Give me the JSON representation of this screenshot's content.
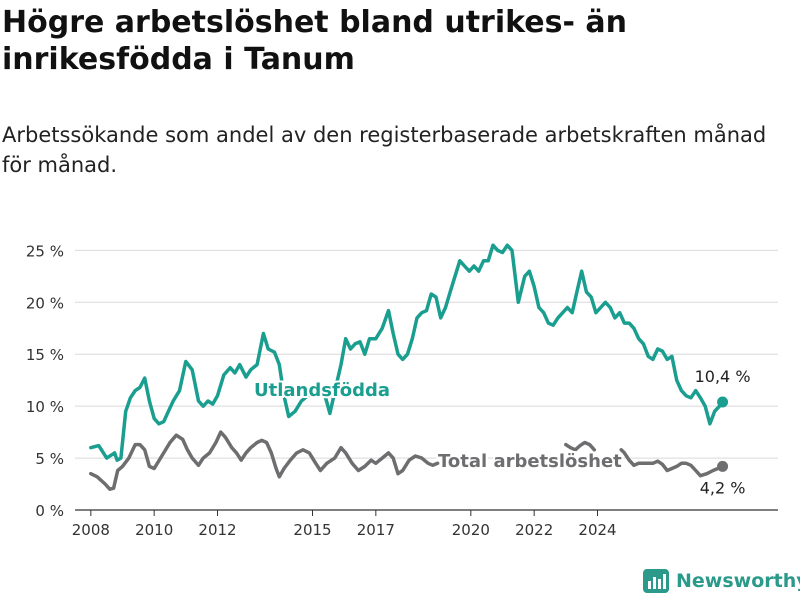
{
  "title": "Högre arbetslöshet bland utrikes- än inrikesfödda i Tanum",
  "subtitle": "Arbetssökande som andel av den registerbaserade arbetskraften månad för månad.",
  "brand": {
    "name": "Newsworthy",
    "icon": "bar-chart-logo-icon"
  },
  "colors": {
    "utlandsfodda": "#1a9e8f",
    "total": "#6e6e70",
    "grid": "#d9d9d9",
    "text": "#333333"
  },
  "chart_data": {
    "type": "line",
    "ylim": [
      0,
      26
    ],
    "yticks": [
      0,
      5,
      10,
      15,
      20,
      25
    ],
    "ytick_labels": [
      "0 %",
      "5 %",
      "10 %",
      "15 %",
      "20 %",
      "25 %"
    ],
    "xticks": [
      2008,
      2010,
      2012,
      2015,
      2017,
      2020,
      2022,
      2024
    ],
    "xtick_labels": [
      "2008",
      "2010",
      "2012",
      "2015",
      "2017",
      "2020",
      "2022",
      "2024"
    ],
    "grid": true,
    "legend": "inline",
    "series": [
      {
        "name": "Utlandsfödda",
        "end_label": "10,4 %",
        "points": [
          [
            2008.0,
            6.0
          ],
          [
            2008.25,
            6.2
          ],
          [
            2008.5,
            5.0
          ],
          [
            2008.75,
            5.5
          ],
          [
            2008.83,
            4.8
          ],
          [
            2008.95,
            5.0
          ],
          [
            2009.1,
            9.5
          ],
          [
            2009.25,
            10.8
          ],
          [
            2009.4,
            11.5
          ],
          [
            2009.55,
            11.8
          ],
          [
            2009.7,
            12.7
          ],
          [
            2009.85,
            10.5
          ],
          [
            2010.0,
            8.8
          ],
          [
            2010.15,
            8.3
          ],
          [
            2010.3,
            8.5
          ],
          [
            2010.45,
            9.5
          ],
          [
            2010.6,
            10.5
          ],
          [
            2010.8,
            11.5
          ],
          [
            2011.0,
            14.3
          ],
          [
            2011.2,
            13.5
          ],
          [
            2011.4,
            10.5
          ],
          [
            2011.55,
            10.0
          ],
          [
            2011.7,
            10.5
          ],
          [
            2011.85,
            10.2
          ],
          [
            2012.0,
            11.0
          ],
          [
            2012.2,
            13.0
          ],
          [
            2012.4,
            13.7
          ],
          [
            2012.55,
            13.2
          ],
          [
            2012.7,
            14.0
          ],
          [
            2012.9,
            12.8
          ],
          [
            2013.05,
            13.5
          ],
          [
            2013.25,
            14.0
          ],
          [
            2013.45,
            17.0
          ],
          [
            2013.6,
            15.5
          ],
          [
            2013.8,
            15.2
          ],
          [
            2013.95,
            14.0
          ],
          [
            2014.1,
            11.0
          ],
          [
            2014.25,
            9.0
          ],
          [
            2014.45,
            9.5
          ],
          [
            2014.65,
            10.5
          ],
          [
            2014.85,
            11.0
          ],
          [
            2015.05,
            11.2
          ],
          [
            2015.2,
            12.0
          ],
          [
            2015.35,
            11.5
          ],
          [
            2015.55,
            9.3
          ],
          [
            2015.75,
            12.0
          ],
          [
            2015.9,
            14.0
          ],
          [
            2016.05,
            16.5
          ],
          [
            2016.2,
            15.5
          ],
          [
            2016.35,
            16.0
          ],
          [
            2016.5,
            16.2
          ],
          [
            2016.65,
            15.0
          ],
          [
            2016.8,
            16.5
          ],
          [
            2017.0,
            16.5
          ],
          [
            2017.2,
            17.5
          ],
          [
            2017.4,
            19.2
          ],
          [
            2017.55,
            17.0
          ],
          [
            2017.7,
            15.0
          ],
          [
            2017.85,
            14.5
          ],
          [
            2018.0,
            15.0
          ],
          [
            2018.15,
            16.5
          ],
          [
            2018.3,
            18.5
          ],
          [
            2018.45,
            19.0
          ],
          [
            2018.6,
            19.2
          ],
          [
            2018.75,
            20.8
          ],
          [
            2018.9,
            20.5
          ],
          [
            2019.05,
            18.5
          ],
          [
            2019.2,
            19.5
          ],
          [
            2019.35,
            21.0
          ],
          [
            2019.5,
            22.5
          ],
          [
            2019.65,
            24.0
          ],
          [
            2019.8,
            23.5
          ],
          [
            2019.95,
            23.0
          ],
          [
            2020.1,
            23.5
          ],
          [
            2020.25,
            23.0
          ],
          [
            2020.4,
            24.0
          ],
          [
            2020.55,
            24.0
          ],
          [
            2020.7,
            25.5
          ],
          [
            2020.85,
            25.0
          ],
          [
            2021.0,
            24.8
          ],
          [
            2021.15,
            25.5
          ],
          [
            2021.3,
            25.0
          ],
          [
            2021.5,
            20.0
          ],
          [
            2021.7,
            22.5
          ],
          [
            2021.85,
            23.0
          ],
          [
            2022.0,
            21.5
          ],
          [
            2022.15,
            19.5
          ],
          [
            2022.3,
            19.0
          ],
          [
            2022.45,
            18.0
          ],
          [
            2022.6,
            17.8
          ],
          [
            2022.75,
            18.5
          ],
          [
            2022.9,
            19.0
          ],
          [
            2023.05,
            19.5
          ],
          [
            2023.2,
            19.0
          ],
          [
            2023.35,
            21.0
          ],
          [
            2023.5,
            23.0
          ],
          [
            2023.65,
            21.0
          ],
          [
            2023.8,
            20.5
          ],
          [
            2023.95,
            19.0
          ],
          [
            2024.1,
            19.5
          ],
          [
            2024.25,
            20.0
          ],
          [
            2024.4,
            19.5
          ],
          [
            2024.55,
            18.5
          ],
          [
            2024.7,
            19.0
          ],
          [
            2024.85,
            18.0
          ],
          [
            2025.0,
            18.0
          ],
          [
            2025.15,
            17.5
          ],
          [
            2025.3,
            16.5
          ],
          [
            2025.45,
            16.0
          ],
          [
            2025.6,
            14.8
          ],
          [
            2025.75,
            14.5
          ],
          [
            2025.9,
            15.5
          ],
          [
            2026.05,
            15.3
          ],
          [
            2026.2,
            14.5
          ],
          [
            2026.35,
            14.8
          ],
          [
            2026.5,
            12.5
          ],
          [
            2026.65,
            11.5
          ],
          [
            2026.8,
            11.0
          ],
          [
            2026.95,
            10.8
          ],
          [
            2027.1,
            11.5
          ],
          [
            2027.25,
            10.8
          ],
          [
            2027.4,
            10.0
          ],
          [
            2027.55,
            8.3
          ],
          [
            2027.7,
            9.5
          ],
          [
            2027.85,
            10.0
          ],
          [
            2027.95,
            10.4
          ]
        ]
      },
      {
        "name": "Total arbetslöshet",
        "end_label": "4,2 %",
        "points": [
          [
            2008.0,
            3.5
          ],
          [
            2008.2,
            3.2
          ],
          [
            2008.45,
            2.5
          ],
          [
            2008.6,
            2.0
          ],
          [
            2008.72,
            2.1
          ],
          [
            2008.85,
            3.8
          ],
          [
            2009.0,
            4.2
          ],
          [
            2009.2,
            5.0
          ],
          [
            2009.4,
            6.3
          ],
          [
            2009.55,
            6.3
          ],
          [
            2009.7,
            5.8
          ],
          [
            2009.85,
            4.2
          ],
          [
            2010.0,
            4.0
          ],
          [
            2010.2,
            5.0
          ],
          [
            2010.5,
            6.5
          ],
          [
            2010.7,
            7.2
          ],
          [
            2010.9,
            6.8
          ],
          [
            2011.05,
            5.8
          ],
          [
            2011.2,
            5.0
          ],
          [
            2011.4,
            4.3
          ],
          [
            2011.55,
            5.0
          ],
          [
            2011.75,
            5.5
          ],
          [
            2011.95,
            6.5
          ],
          [
            2012.1,
            7.5
          ],
          [
            2012.25,
            7.0
          ],
          [
            2012.45,
            6.0
          ],
          [
            2012.6,
            5.5
          ],
          [
            2012.75,
            4.8
          ],
          [
            2012.9,
            5.5
          ],
          [
            2013.05,
            6.0
          ],
          [
            2013.25,
            6.5
          ],
          [
            2013.4,
            6.7
          ],
          [
            2013.55,
            6.5
          ],
          [
            2013.7,
            5.5
          ],
          [
            2013.85,
            4.0
          ],
          [
            2013.95,
            3.2
          ],
          [
            2014.1,
            4.0
          ],
          [
            2014.3,
            4.8
          ],
          [
            2014.5,
            5.5
          ],
          [
            2014.7,
            5.8
          ],
          [
            2014.9,
            5.5
          ],
          [
            2015.1,
            4.5
          ],
          [
            2015.25,
            3.8
          ],
          [
            2015.45,
            4.5
          ],
          [
            2015.7,
            5.0
          ],
          [
            2015.9,
            6.0
          ],
          [
            2016.05,
            5.5
          ],
          [
            2016.25,
            4.5
          ],
          [
            2016.45,
            3.8
          ],
          [
            2016.65,
            4.2
          ],
          [
            2016.85,
            4.8
          ],
          [
            2017.0,
            4.5
          ],
          [
            2017.2,
            5.0
          ],
          [
            2017.4,
            5.5
          ],
          [
            2017.55,
            5.0
          ],
          [
            2017.7,
            3.5
          ],
          [
            2017.85,
            3.8
          ],
          [
            2018.05,
            4.8
          ],
          [
            2018.25,
            5.2
          ],
          [
            2018.45,
            5.0
          ],
          [
            2018.65,
            4.5
          ],
          [
            2018.8,
            4.3
          ],
          [
            2018.95,
            4.5
          ]
        ]
      },
      {
        "name": "Total arbetslöshet (forts.)",
        "points": [
          [
            2023.0,
            6.3
          ],
          [
            2023.15,
            6.0
          ],
          [
            2023.3,
            5.8
          ],
          [
            2023.45,
            6.2
          ],
          [
            2023.6,
            6.5
          ],
          [
            2023.75,
            6.3
          ],
          [
            2023.9,
            5.8
          ]
        ]
      },
      {
        "name": "Total arbetslöshet (slut)",
        "points": [
          [
            2024.75,
            5.8
          ],
          [
            2024.85,
            5.5
          ],
          [
            2025.0,
            4.8
          ],
          [
            2025.15,
            4.3
          ],
          [
            2025.3,
            4.5
          ],
          [
            2025.45,
            4.5
          ],
          [
            2025.6,
            4.5
          ],
          [
            2025.75,
            4.5
          ],
          [
            2025.9,
            4.7
          ],
          [
            2026.05,
            4.4
          ],
          [
            2026.2,
            3.8
          ],
          [
            2026.35,
            4.0
          ],
          [
            2026.5,
            4.2
          ],
          [
            2026.65,
            4.5
          ],
          [
            2026.8,
            4.5
          ],
          [
            2026.95,
            4.3
          ],
          [
            2027.1,
            3.8
          ],
          [
            2027.25,
            3.3
          ],
          [
            2027.45,
            3.5
          ],
          [
            2027.65,
            3.8
          ],
          [
            2027.8,
            4.0
          ],
          [
            2027.95,
            4.2
          ]
        ]
      }
    ]
  }
}
